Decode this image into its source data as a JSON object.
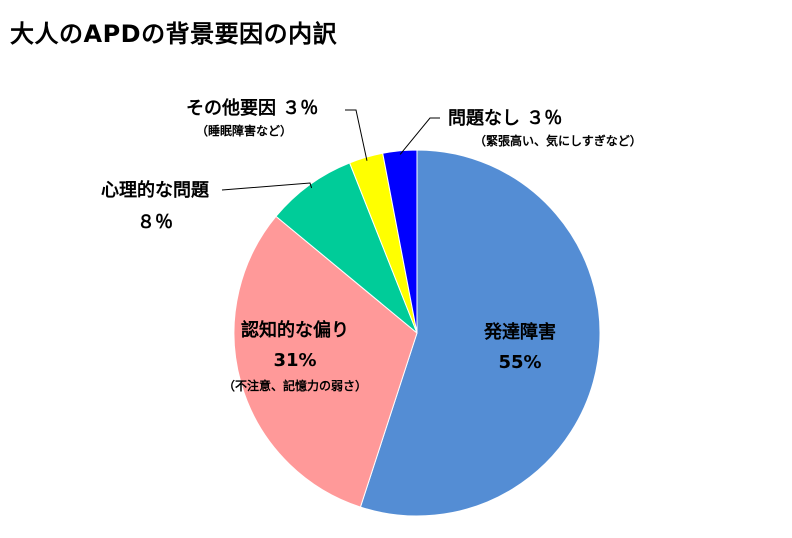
{
  "chart_data": {
    "type": "pie",
    "title": "大人のAPDの背景要因の内訳",
    "start_angle_deg": 0,
    "direction": "clockwise",
    "slices": [
      {
        "name": "発達障害",
        "value": 55,
        "value_label": "55%",
        "note": "",
        "color": "#548dd4"
      },
      {
        "name": "認知的な偏り",
        "value": 31,
        "value_label": "31%",
        "note": "（不注意、記憶力の弱さ）",
        "color": "#ff9999"
      },
      {
        "name": "心理的な問題",
        "value": 8,
        "value_label": "８％",
        "note": "",
        "color": "#00cc99"
      },
      {
        "name": "その他要因",
        "value": 3,
        "value_label": "３％",
        "note": "（睡眠障害など）",
        "color": "#ffff00"
      },
      {
        "name": "問題なし",
        "value": 3,
        "value_label": "３％",
        "note": "（緊張高い、気にしすぎなど）",
        "color": "#0000ff"
      }
    ],
    "legend": "none"
  }
}
